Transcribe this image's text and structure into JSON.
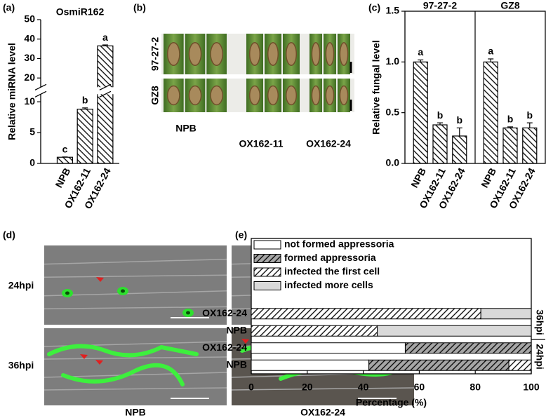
{
  "figure": {
    "panel_labels": [
      "(a)",
      "(b)",
      "(c)",
      "(d)",
      "(e)"
    ],
    "panel_b": {
      "row_labels": [
        "97-27-2",
        "GZ8"
      ],
      "column_labels": [
        "NPB",
        "OX162-11",
        "OX162-24"
      ]
    },
    "panel_d": {
      "row_labels": [
        "24hpi",
        "36hpi"
      ],
      "column_labels": [
        "NPB",
        "OX162-24"
      ]
    }
  },
  "chart_data": [
    {
      "type": "bar",
      "title": "OsmiR162",
      "ylabel": "Relative miRNA level",
      "categories": [
        "NPB",
        "OX162-11",
        "OX162-24"
      ],
      "values": [
        1,
        8.8,
        36.5
      ],
      "errors": [
        0.05,
        0.2,
        0.5
      ],
      "annotations": [
        "c",
        "b",
        "a"
      ],
      "color": "#ffffff",
      "hatch": true,
      "ylim": [
        0,
        50
      ],
      "yticks": [
        0,
        5,
        10,
        20,
        30,
        40,
        50
      ],
      "axis_break": [
        11,
        16
      ]
    },
    {
      "type": "bar",
      "ylabel": "Relative fungal level",
      "groups": [
        {
          "name": "97-27-2",
          "categories": [
            "NPB",
            "OX162-11",
            "OX162-24"
          ],
          "values": [
            1.0,
            0.38,
            0.27
          ],
          "errors": [
            0.02,
            0.02,
            0.08
          ],
          "annotations": [
            "a",
            "b",
            "b"
          ]
        },
        {
          "name": "GZ8",
          "categories": [
            "NPB",
            "OX162-11",
            "OX162-24"
          ],
          "values": [
            1.0,
            0.35,
            0.35
          ],
          "errors": [
            0.03,
            0.01,
            0.05
          ],
          "annotations": [
            "a",
            "b",
            "b"
          ]
        }
      ],
      "color": "#ffffff",
      "hatch": true,
      "ylim": [
        0,
        1.5
      ],
      "yticks": [
        {
          "value": 0,
          "label": "0.0"
        },
        0.5,
        {
          "value": 1,
          "label": "1.0"
        },
        1.5
      ]
    },
    {
      "type": "barh",
      "stacked": true,
      "xlabel": "Percentage  (%)",
      "groups": [
        {
          "name": "36hpi",
          "categories": [
            "OX162-24",
            "NPB"
          ]
        },
        {
          "name": "24hpi",
          "categories": [
            "OX162-24",
            "NPB"
          ]
        }
      ],
      "series": [
        {
          "name": "not formed appressoria",
          "color": "#ffffff",
          "hatch": false,
          "values": [
            0,
            0,
            55,
            42
          ]
        },
        {
          "name": "formed appressoria",
          "color": "#a6a6a6",
          "hatch": true,
          "values": [
            0,
            0,
            45,
            50
          ]
        },
        {
          "name": "infected the first cell",
          "color": "#ffffff",
          "hatch": true,
          "values": [
            82,
            45,
            0,
            8
          ]
        },
        {
          "name": "infected more cells",
          "color": "#d9d9d9",
          "hatch": false,
          "values": [
            18,
            55,
            0,
            0
          ]
        }
      ],
      "xlim": [
        0,
        100
      ],
      "xticks": [
        0,
        20,
        40,
        60,
        80,
        100
      ],
      "legend": "top"
    }
  ]
}
